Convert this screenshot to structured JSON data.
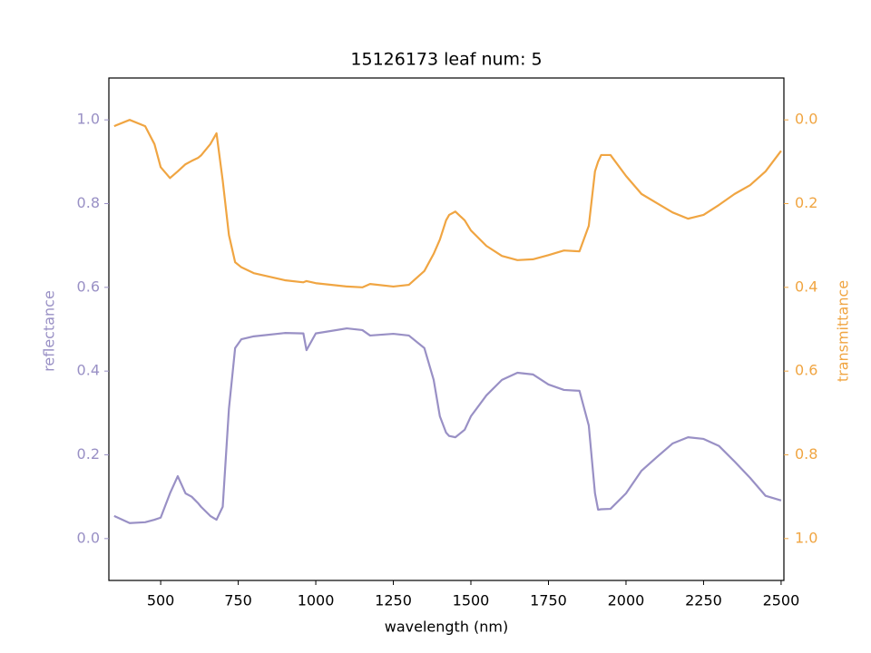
{
  "chart_data": {
    "type": "line",
    "title": "15126173 leaf num: 5",
    "x_label": "wavelength (nm)",
    "y_label": "reflectance",
    "y2_label": "transmittance",
    "x": [
      350,
      400,
      450,
      480,
      500,
      530,
      555,
      580,
      600,
      620,
      630,
      660,
      680,
      700,
      720,
      740,
      760,
      800,
      900,
      960,
      970,
      1000,
      1100,
      1150,
      1175,
      1250,
      1300,
      1350,
      1380,
      1400,
      1420,
      1430,
      1450,
      1480,
      1500,
      1550,
      1600,
      1650,
      1700,
      1750,
      1800,
      1850,
      1880,
      1900,
      1910,
      1920,
      1950,
      2000,
      2050,
      2100,
      2150,
      2200,
      2250,
      2300,
      2350,
      2400,
      2450,
      2500
    ],
    "series": [
      {
        "name": "reflectance",
        "color": "#9990c5",
        "axis": "y",
        "values": [
          0.054,
          0.037,
          0.039,
          0.045,
          0.05,
          0.108,
          0.149,
          0.108,
          0.1,
          0.085,
          0.076,
          0.054,
          0.045,
          0.076,
          0.31,
          0.455,
          0.476,
          0.483,
          0.491,
          0.49,
          0.45,
          0.49,
          0.502,
          0.498,
          0.485,
          0.489,
          0.485,
          0.455,
          0.379,
          0.292,
          0.253,
          0.245,
          0.242,
          0.26,
          0.292,
          0.342,
          0.379,
          0.396,
          0.392,
          0.368,
          0.355,
          0.353,
          0.27,
          0.108,
          0.069,
          0.07,
          0.071,
          0.108,
          0.162,
          0.195,
          0.227,
          0.242,
          0.238,
          0.221,
          0.184,
          0.145,
          0.102,
          0.091
        ]
      },
      {
        "name": "transmittance",
        "color": "#f0a542",
        "axis": "y2",
        "values": [
          0.015,
          0,
          0.015,
          0.058,
          0.113,
          0.139,
          0.123,
          0.106,
          0.098,
          0.091,
          0.085,
          0.058,
          0.032,
          0.145,
          0.275,
          0.34,
          0.352,
          0.366,
          0.383,
          0.388,
          0.385,
          0.39,
          0.398,
          0.4,
          0.392,
          0.398,
          0.394,
          0.361,
          0.32,
          0.286,
          0.24,
          0.227,
          0.219,
          0.24,
          0.264,
          0.301,
          0.325,
          0.335,
          0.333,
          0.323,
          0.312,
          0.314,
          0.253,
          0.123,
          0.1,
          0.084,
          0.084,
          0.134,
          0.177,
          0.199,
          0.221,
          0.236,
          0.227,
          0.203,
          0.177,
          0.156,
          0.123,
          0.074
        ]
      }
    ],
    "xlim": [
      333,
      2509
    ],
    "xticks": [
      500,
      750,
      1000,
      1250,
      1500,
      1750,
      2000,
      2250,
      2500
    ],
    "ylim": [
      -0.1,
      1.1
    ],
    "yticks": [
      {
        "value": 0,
        "label": "0.0"
      },
      0.2,
      0.4,
      0.6,
      0.8,
      {
        "value": 1,
        "label": "1.0"
      }
    ],
    "y2lim": [
      1.1,
      -0.1
    ],
    "y2ticks": [
      {
        "value": 0,
        "label": "0.0"
      },
      0.2,
      0.4,
      0.6,
      0.8,
      {
        "value": 1,
        "label": "1.0"
      }
    ],
    "grid": false
  }
}
